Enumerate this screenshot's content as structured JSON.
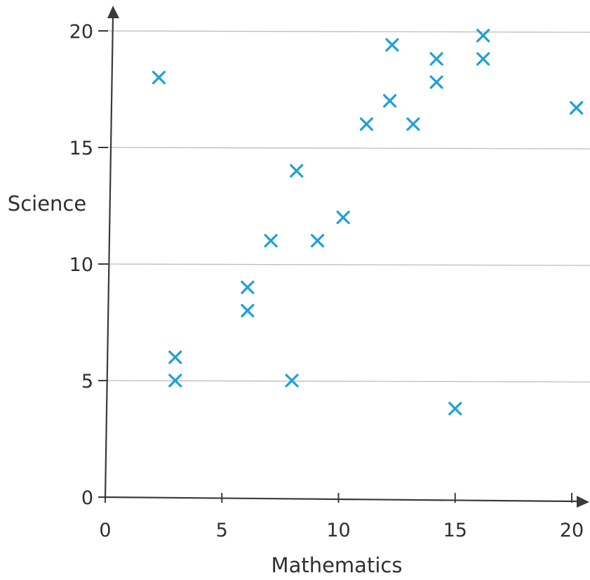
{
  "chart_data": {
    "type": "scatter",
    "title": "",
    "xlabel": "Mathematics",
    "ylabel": "Science",
    "xlim": [
      0,
      20
    ],
    "ylim": [
      0,
      20
    ],
    "x_ticks": [
      "0",
      "5",
      "10",
      "15",
      "20"
    ],
    "y_ticks": [
      "0",
      "5",
      "10",
      "15",
      "20"
    ],
    "grid": "horizontal",
    "marker": "cross",
    "colors": {
      "marker": "#1ea0d7",
      "axis": "#3a3a3a",
      "grid": "#bdbdbd",
      "text": "#2f2f2f"
    },
    "points": [
      {
        "x": 2.3,
        "y": 18
      },
      {
        "x": 3,
        "y": 6
      },
      {
        "x": 3,
        "y": 5
      },
      {
        "x": 6.1,
        "y": 9
      },
      {
        "x": 6.1,
        "y": 8
      },
      {
        "x": 7.1,
        "y": 11
      },
      {
        "x": 8,
        "y": 5
      },
      {
        "x": 8.2,
        "y": 14
      },
      {
        "x": 9.1,
        "y": 11
      },
      {
        "x": 10.2,
        "y": 12
      },
      {
        "x": 11.2,
        "y": 16
      },
      {
        "x": 12.2,
        "y": 17
      },
      {
        "x": 12.3,
        "y": 19.4
      },
      {
        "x": 13.2,
        "y": 16
      },
      {
        "x": 14.2,
        "y": 18.8
      },
      {
        "x": 14.2,
        "y": 17.8
      },
      {
        "x": 15,
        "y": 3.8
      },
      {
        "x": 16.2,
        "y": 19.8
      },
      {
        "x": 16.2,
        "y": 18.8
      },
      {
        "x": 20.2,
        "y": 16.7
      }
    ]
  }
}
